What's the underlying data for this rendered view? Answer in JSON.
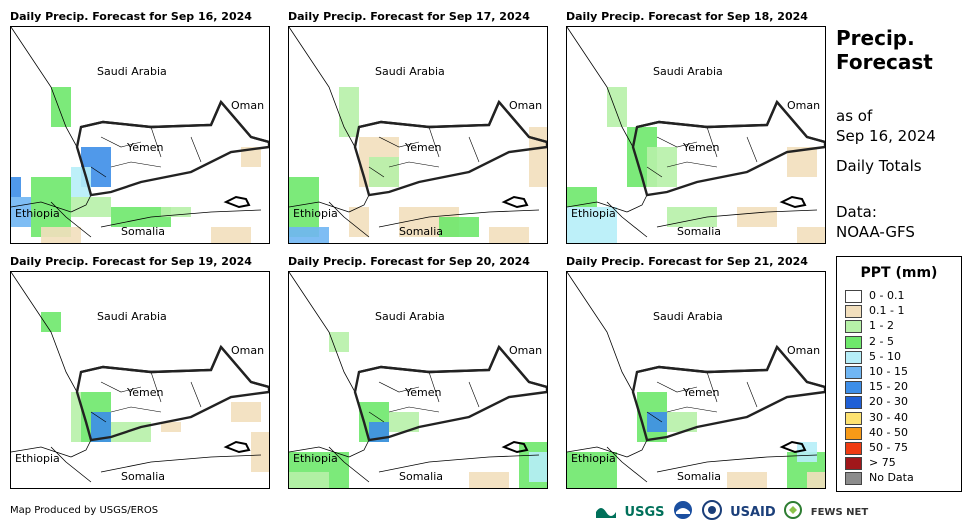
{
  "panels": [
    {
      "title": "Daily Precip. Forecast for Sep 16, 2024"
    },
    {
      "title": "Daily Precip. Forecast for Sep 17, 2024"
    },
    {
      "title": "Daily Precip. Forecast for Sep 18, 2024"
    },
    {
      "title": "Daily Precip. Forecast for Sep 19, 2024"
    },
    {
      "title": "Daily Precip. Forecast for Sep 20, 2024"
    },
    {
      "title": "Daily Precip. Forecast for Sep 21, 2024"
    }
  ],
  "map_labels": {
    "saudi": "Saudi Arabia",
    "oman": "Oman",
    "yemen": "Yemen",
    "ethiopia": "Ethiopia",
    "somalia": "Somalia"
  },
  "side": {
    "title_line1": "Precip.",
    "title_line2": "Forecast",
    "asof_line1": "as of",
    "asof_line2": "Sep 16, 2024",
    "daily_totals": "Daily Totals",
    "data_line1": "Data:",
    "data_line2": "NOAA-GFS"
  },
  "legend": {
    "title": "PPT (mm)",
    "items": [
      {
        "label": "0 - 0.1",
        "color": "#ffffff"
      },
      {
        "label": "0.1 - 1",
        "color": "#f2dfbd"
      },
      {
        "label": "1 - 2",
        "color": "#b7f1a8"
      },
      {
        "label": "2 - 5",
        "color": "#6ee86b"
      },
      {
        "label": "5 - 10",
        "color": "#b6eef8"
      },
      {
        "label": "10 - 15",
        "color": "#70b6f3"
      },
      {
        "label": "15 - 20",
        "color": "#3d8ee8"
      },
      {
        "label": "20 - 30",
        "color": "#1f5fd6"
      },
      {
        "label": "30 - 40",
        "color": "#fde271"
      },
      {
        "label": "40 - 50",
        "color": "#f79a17"
      },
      {
        "label": "50 - 75",
        "color": "#ef3b12"
      },
      {
        "label": "> 75",
        "color": "#a0171a"
      },
      {
        "label": "No Data",
        "color": "#8c8c8c"
      }
    ]
  },
  "footer": "Map Produced by USGS/EROS",
  "logos": {
    "usgs": "USGS",
    "usaid": "USAID",
    "fews": "FEWS NET"
  }
}
